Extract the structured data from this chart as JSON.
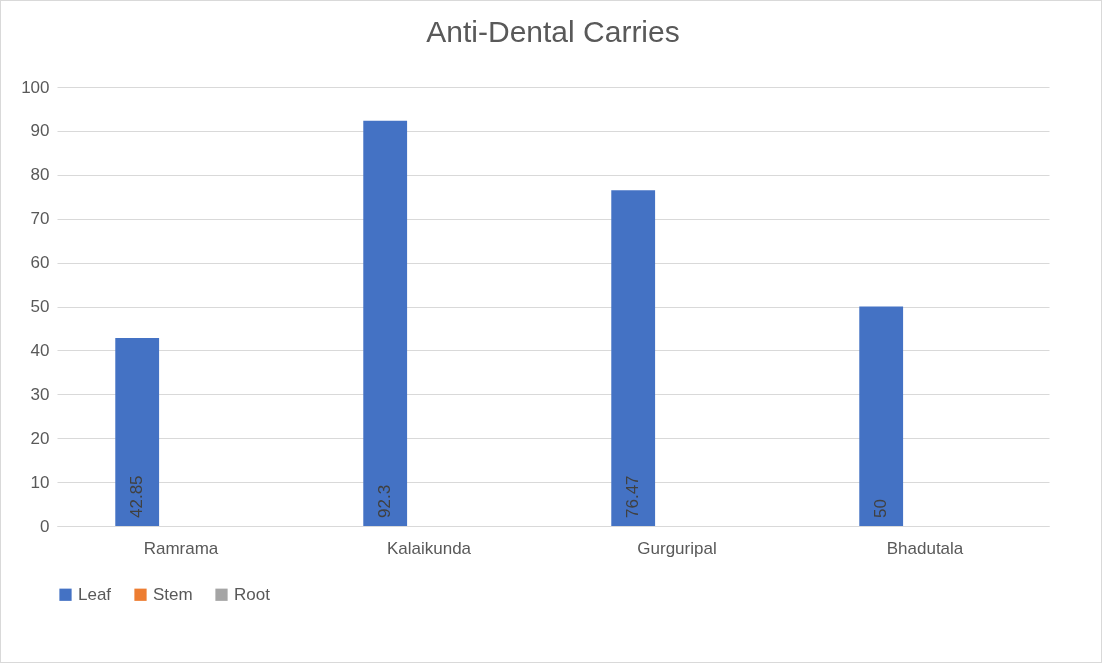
{
  "chart_data": {
    "type": "bar",
    "title": "Anti-Dental Carries",
    "categories": [
      "Ramrama",
      "Kalaikunda",
      "Gurguripal",
      "Bhadutala"
    ],
    "series": [
      {
        "name": "Leaf",
        "color": "#4472c4",
        "values": [
          42.85,
          92.3,
          76.47,
          50
        ],
        "value_labels": [
          "42.85",
          "92.3",
          "76.47",
          "50"
        ]
      },
      {
        "name": "Stem",
        "color": "#ed7d31",
        "values": [
          0,
          0,
          0,
          0
        ]
      },
      {
        "name": "Root",
        "color": "#a5a5a5",
        "values": [
          0,
          0,
          0,
          0
        ]
      }
    ],
    "ylim": [
      0,
      100
    ],
    "yticks": [
      0,
      10,
      20,
      30,
      40,
      50,
      60,
      70,
      80,
      90,
      100
    ],
    "grid": "y",
    "legend": "bottom"
  }
}
